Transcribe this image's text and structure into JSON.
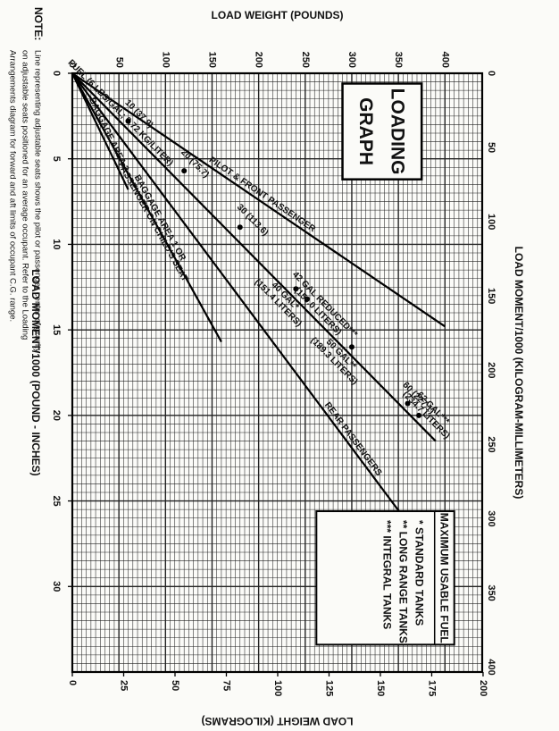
{
  "chart_data": {
    "type": "line",
    "title": "LOADING GRAPH",
    "title_lines": [
      "LOADING",
      "GRAPH"
    ],
    "x_axis_bottom": {
      "label": "LOAD MOMENT/1000 (POUND - INCHES)",
      "range": [
        0,
        35
      ],
      "ticks": [
        0,
        5,
        10,
        15,
        20,
        25,
        30
      ],
      "tick_labels": [
        "0",
        "5",
        "10",
        "15",
        "20",
        "25",
        "30"
      ]
    },
    "x_axis_top": {
      "label": "LOAD MOMENT/1000 (KILOGRAM-MILLIMETERS)",
      "ticks": [
        0,
        50,
        100,
        150,
        200,
        250,
        300,
        350,
        400
      ],
      "tick_labels": [
        "0",
        "50",
        "100",
        "150",
        "200",
        "250",
        "300",
        "350",
        "400"
      ]
    },
    "y_axis_left": {
      "label": "LOAD WEIGHT (POUNDS)",
      "range": [
        0,
        440
      ],
      "ticks": [
        0,
        50,
        100,
        150,
        200,
        250,
        300,
        350,
        400
      ],
      "tick_labels": [
        "0",
        "50",
        "100",
        "150",
        "200",
        "250",
        "300",
        "350",
        "400"
      ]
    },
    "y_axis_right": {
      "label": "LOAD WEIGHT (KILOGRAMS)",
      "ticks": [
        0,
        25,
        50,
        75,
        100,
        125,
        150,
        175,
        200
      ],
      "tick_labels": [
        "0",
        "25",
        "50",
        "75",
        "100",
        "125",
        "150",
        "175",
        "200"
      ]
    },
    "grid": true,
    "series": [
      {
        "name": "REAR PASSENGERS",
        "x": [
          0,
          29.2
        ],
        "y": [
          0,
          400
        ]
      },
      {
        "name": "PILOT & FRONT PASSENGER",
        "x": [
          0,
          14.8
        ],
        "y": [
          0,
          400
        ]
      },
      {
        "name": "FUEL (6 LBS/GAL; 0.72 KG/LITER)",
        "x": [
          0,
          21.5
        ],
        "y": [
          0,
          390
        ]
      },
      {
        "name": "BAGGAGE AREA 1 OR PASSENGER ON CHILD'S SEAT",
        "x": [
          0,
          15.7
        ],
        "y": [
          0,
          160
        ]
      },
      {
        "name": "BAGGAGE AREA 2",
        "x": [
          0,
          6.8
        ],
        "y": [
          0,
          60
        ]
      }
    ],
    "fuel_points": [
      {
        "label": "10 (37.9)",
        "gallons": 10,
        "weight": 60,
        "moment": 2.8
      },
      {
        "label": "20 (75.7)",
        "gallons": 20,
        "weight": 120,
        "moment": 5.7
      },
      {
        "label": "30 (113.6)",
        "gallons": 30,
        "weight": 180,
        "moment": 9.0
      },
      {
        "label": "40 GAL* (151.4 LITERS)",
        "gallons": 40,
        "weight": 240,
        "moment": 12.6
      },
      {
        "label": "42 GAL REDUCED*** (159.0 LITERS)",
        "gallons": 42,
        "weight": 252,
        "moment": 13.2
      },
      {
        "label": "50 GAL** (189.3 LITERS)",
        "gallons": 50,
        "weight": 300,
        "moment": 16.0
      },
      {
        "label": "60 (227.1)",
        "gallons": 60,
        "weight": 360,
        "moment": 19.3
      },
      {
        "label": "62 GAL*** (234.7 LITERS)",
        "gallons": 62,
        "weight": 372,
        "moment": 20.0
      }
    ],
    "legend": {
      "placement": "top-left",
      "title": "MAXIMUM USABLE FUEL",
      "items": [
        "* STANDARD TANKS",
        "** LONG RANGE TANKS",
        "*** INTEGRAL TANKS"
      ]
    },
    "note": {
      "label": "NOTE:",
      "lines": [
        "Line representing adjustable seats shows the pilot or passenger center of gravity",
        "on adjustable seats positioned for an average occupant.  Refer to the Loading",
        "Arrangements diagram for forward and aft limits of occupant C.G. range."
      ]
    },
    "orientation": "rotated 90° counter-clockwise"
  }
}
